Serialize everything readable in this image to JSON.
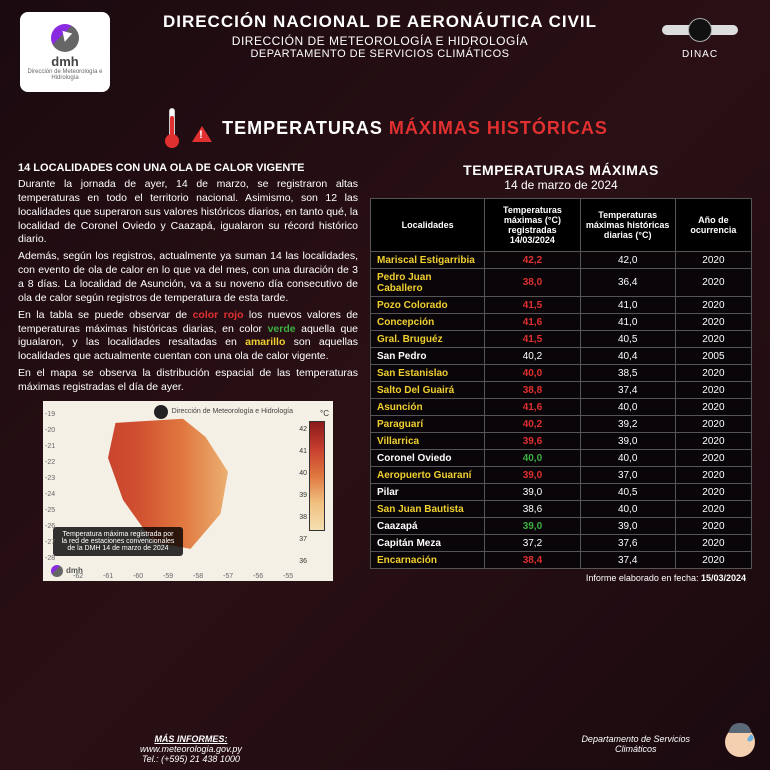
{
  "header": {
    "org1": "DIRECCIÓN NACIONAL DE AERONÁUTICA CIVIL",
    "org2": "DIRECCIÓN DE METEOROLOGÍA E HIDROLOGÍA",
    "org3": "DEPARTAMENTO DE SERVICIOS CLIMÁTICOS",
    "left_logo_top": "dmh",
    "left_logo_sub": "Dirección de Meteorología e Hidrología",
    "right_logo": "DINAC"
  },
  "title": {
    "t1": "TEMPERATURAS ",
    "t2": "MÁXIMAS HISTÓRICAS"
  },
  "body": {
    "subtitle": "14 LOCALIDADES CON UNA OLA DE CALOR VIGENTE",
    "p1": "Durante la jornada de ayer, 14 de marzo, se registraron altas temperaturas en todo el territorio nacional. Asimismo, son 12 las localidades que superaron sus valores históricos diarios, en tanto qué, la localidad de Coronel Oviedo y Caazapá, igualaron su récord histórico diario.",
    "p2": "Además, según los registros, actualmente ya suman 14 las localidades, con evento de ola de calor en lo que va del mes, con una duración de 3 a 8 días. La localidad de Asunción, va a su noveno día consecutivo de ola de calor según registros de temperatura de esta tarde.",
    "p3a": "En la tabla se puede observar de ",
    "p3_red": "color rojo",
    "p3b": " los nuevos valores de temperaturas máximas históricas diarias, en color ",
    "p3_green": "verde",
    "p3c": " aquella que igualaron, y las localidades resaltadas en ",
    "p3_yellow": "amarillo",
    "p3d": " son aquellas localidades que actualmente cuentan con una ola de calor vigente.",
    "p4": "En el mapa se observa la distribución espacial de las temperaturas máximas registradas el día de ayer."
  },
  "map": {
    "top_label": "Dirección de Meteorología e Hidrología",
    "caption": "Temperatura máxima registrada por la red de estaciones convencionales de la DMH 14 de marzo de 2024",
    "unit": "°C",
    "scale": [
      "42",
      "41",
      "40",
      "39",
      "38",
      "37",
      "36"
    ],
    "lats": [
      "-19",
      "-20",
      "-21",
      "-22",
      "-23",
      "-24",
      "-25",
      "-26",
      "-27",
      "-28"
    ],
    "lons": [
      "-62",
      "-61",
      "-60",
      "-59",
      "-58",
      "-57",
      "-56",
      "-55"
    ],
    "logo": "dmh"
  },
  "table": {
    "title": "TEMPERATURAS MÁXIMAS",
    "date": "14 de marzo de 2024",
    "h1": "Localidades",
    "h2": "Temperaturas máximas (°C) registradas 14/03/2024",
    "h3": "Temperaturas máximas históricas diarias (°C)",
    "h4": "Año de ocurrencia",
    "rows": [
      {
        "loc": "Mariscal Estigarribia",
        "lc": "loc-yellow",
        "t1": "42,2",
        "tc": "temp-red",
        "t2": "42,0",
        "yr": "2020"
      },
      {
        "loc": "Pedro Juan Caballero",
        "lc": "loc-yellow",
        "t1": "38,0",
        "tc": "temp-red",
        "t2": "36,4",
        "yr": "2020"
      },
      {
        "loc": "Pozo Colorado",
        "lc": "loc-yellow",
        "t1": "41,5",
        "tc": "temp-red",
        "t2": "41,0",
        "yr": "2020"
      },
      {
        "loc": "Concepción",
        "lc": "loc-yellow",
        "t1": "41,6",
        "tc": "temp-red",
        "t2": "41,0",
        "yr": "2020"
      },
      {
        "loc": "Gral. Bruguéz",
        "lc": "loc-yellow",
        "t1": "41,5",
        "tc": "temp-red",
        "t2": "40,5",
        "yr": "2020"
      },
      {
        "loc": "San Pedro",
        "lc": "loc-white",
        "t1": "40,2",
        "tc": "temp-white",
        "t2": "40,4",
        "yr": "2005"
      },
      {
        "loc": "San Estanislao",
        "lc": "loc-yellow",
        "t1": "40,0",
        "tc": "temp-red",
        "t2": "38,5",
        "yr": "2020"
      },
      {
        "loc": "Salto Del Guairá",
        "lc": "loc-yellow",
        "t1": "38,8",
        "tc": "temp-red",
        "t2": "37,4",
        "yr": "2020"
      },
      {
        "loc": "Asunción",
        "lc": "loc-yellow",
        "t1": "41,6",
        "tc": "temp-red",
        "t2": "40,0",
        "yr": "2020"
      },
      {
        "loc": "Paraguarí",
        "lc": "loc-yellow",
        "t1": "40,2",
        "tc": "temp-red",
        "t2": "39,2",
        "yr": "2020"
      },
      {
        "loc": "Villarrica",
        "lc": "loc-yellow",
        "t1": "39,6",
        "tc": "temp-red",
        "t2": "39,0",
        "yr": "2020"
      },
      {
        "loc": "Coronel Oviedo",
        "lc": "loc-white",
        "t1": "40,0",
        "tc": "temp-green",
        "t2": "40,0",
        "yr": "2020"
      },
      {
        "loc": "Aeropuerto Guaraní",
        "lc": "loc-yellow",
        "t1": "39,0",
        "tc": "temp-red",
        "t2": "37,0",
        "yr": "2020"
      },
      {
        "loc": "Pilar",
        "lc": "loc-white",
        "t1": "39,0",
        "tc": "temp-white",
        "t2": "40,5",
        "yr": "2020"
      },
      {
        "loc": "San Juan Bautista",
        "lc": "loc-yellow",
        "t1": "38,6",
        "tc": "temp-white",
        "t2": "40,0",
        "yr": "2020"
      },
      {
        "loc": "Caazapá",
        "lc": "loc-white",
        "t1": "39,0",
        "tc": "temp-green",
        "t2": "39,0",
        "yr": "2020"
      },
      {
        "loc": "Capitán Meza",
        "lc": "loc-white",
        "t1": "37,2",
        "tc": "temp-white",
        "t2": "37,6",
        "yr": "2020"
      },
      {
        "loc": "Encarnación",
        "lc": "loc-yellow",
        "t1": "38,4",
        "tc": "temp-red",
        "t2": "37,4",
        "yr": "2020"
      }
    ],
    "report_label": "Informe elaborado en fecha:  ",
    "report_date": "15/03/2024"
  },
  "footer": {
    "left_label": "MÁS INFORMES:",
    "url": "www.meteorologia.gov.py",
    "tel_label": "Tel.: ",
    "tel": "(+595) 21 438 1000",
    "right1": "Departamento de Servicios",
    "right2": "Climáticos"
  }
}
